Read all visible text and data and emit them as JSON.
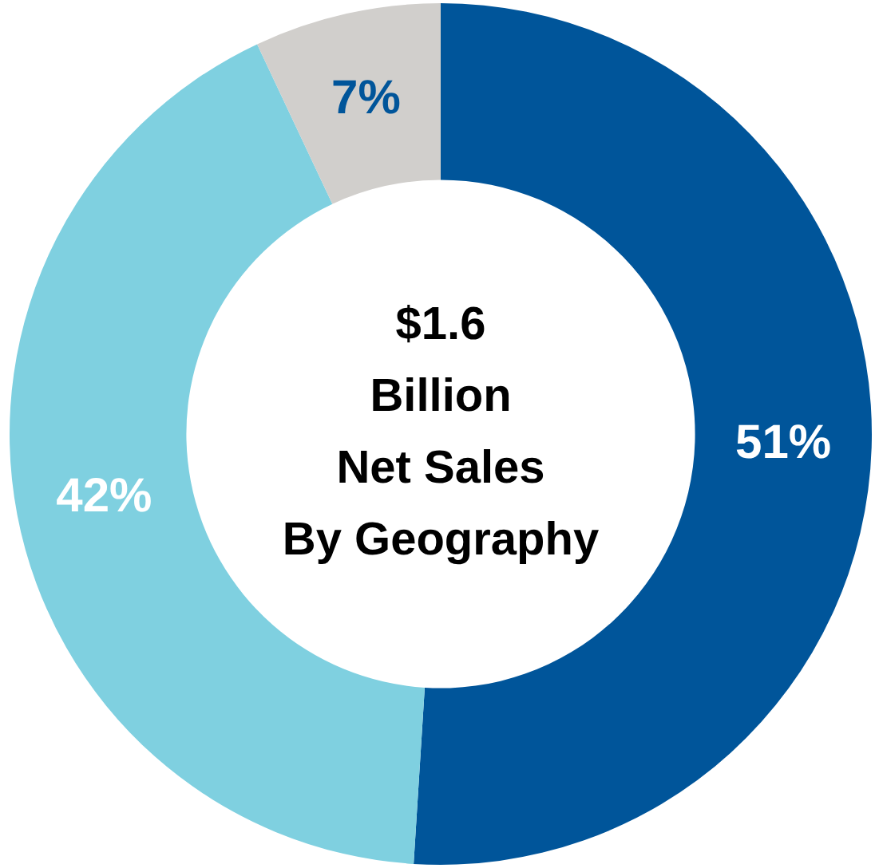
{
  "chart_data": {
    "type": "donut",
    "title": "$1.6\nBillion\nNet Sales\nBy Geography",
    "categories": [
      null,
      null,
      null
    ],
    "values": [
      51,
      42,
      7
    ],
    "colors": [
      "#00559a",
      "#7fd0e0",
      "#d1cfcc"
    ],
    "value_labels": [
      "51%",
      "42%",
      "7%"
    ],
    "legend": false
  }
}
